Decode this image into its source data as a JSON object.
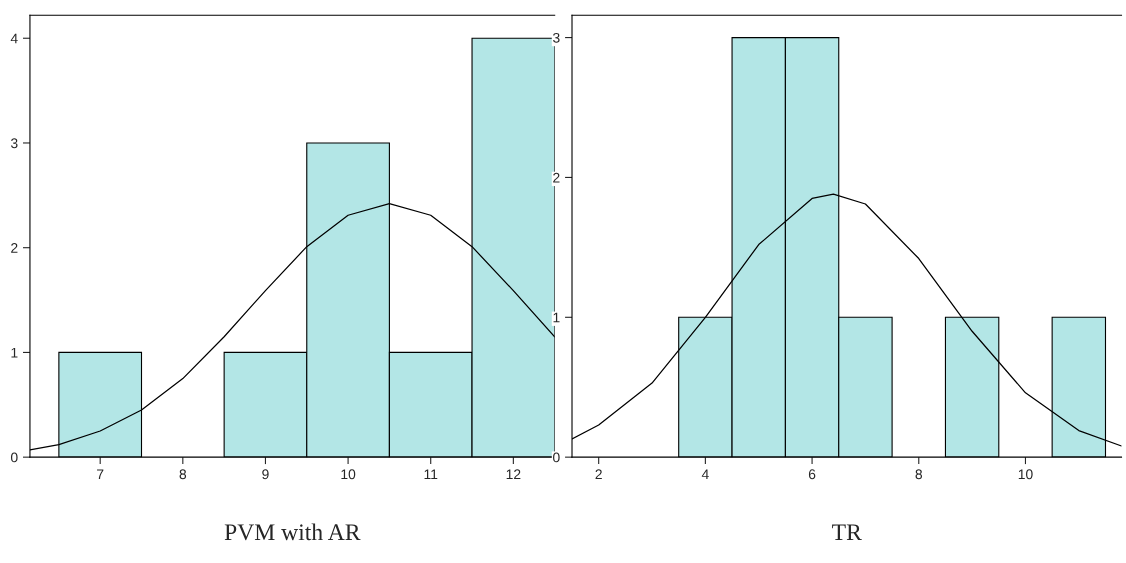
{
  "chart_data": [
    {
      "type": "histogram",
      "xlabel": "PVM with AR",
      "bins": [
        6.5,
        7.5,
        8.5,
        9.5,
        10.5,
        11.5,
        12.5
      ],
      "values": [
        1,
        0,
        1,
        3,
        1,
        4
      ],
      "color": "#b3e6e6",
      "xlim": [
        6.15,
        12.5
      ],
      "xticks": [
        7,
        8,
        9,
        10,
        11,
        12
      ],
      "ylim": [
        0,
        4.22
      ],
      "yticks": [
        0,
        1,
        2,
        3,
        4
      ],
      "grid": false,
      "series": [
        {
          "type": "line",
          "color": "#000000",
          "x": [
            6.15,
            6.5,
            7,
            7.5,
            8,
            8.5,
            9,
            9.5,
            10,
            10.5,
            11,
            11.5,
            12,
            12.5
          ],
          "values": [
            0.07,
            0.12,
            0.25,
            0.45,
            0.75,
            1.15,
            1.59,
            2.01,
            2.31,
            2.42,
            2.31,
            2.01,
            1.59,
            1.15
          ]
        }
      ]
    },
    {
      "type": "histogram",
      "xlabel": "TR",
      "bins": [
        3.5,
        4.5,
        5.5,
        6.5,
        7.5,
        8.5,
        9.5,
        10.5,
        11.5
      ],
      "values": [
        1,
        3,
        3,
        1,
        0,
        1,
        0,
        1
      ],
      "color": "#b3e6e6",
      "xlim": [
        1.5,
        11.8
      ],
      "xticks": [
        2,
        4,
        6,
        8,
        10
      ],
      "ylim": [
        0,
        3.16
      ],
      "yticks": [
        0,
        1,
        2,
        3
      ],
      "grid": false,
      "series": [
        {
          "type": "line",
          "color": "#000000",
          "x": [
            1.5,
            2,
            3,
            4,
            5,
            6,
            6.4,
            7,
            8,
            9,
            10,
            11,
            11.8
          ],
          "values": [
            0.13,
            0.23,
            0.53,
            1.0,
            1.52,
            1.85,
            1.88,
            1.81,
            1.42,
            0.9,
            0.46,
            0.19,
            0.08
          ]
        }
      ]
    }
  ]
}
